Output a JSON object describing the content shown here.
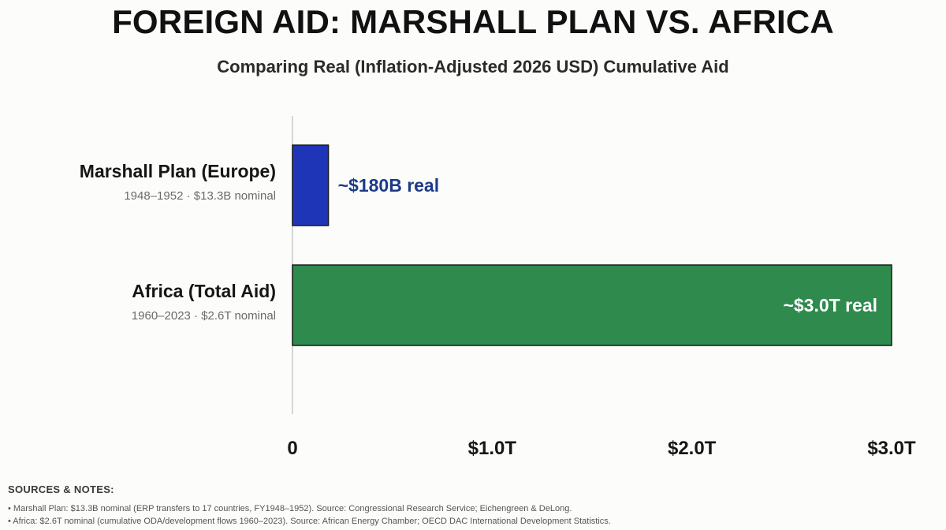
{
  "header": {
    "title": "FOREIGN AID: MARSHALL PLAN VS. AFRICA",
    "subtitle": "Comparing Real (Inflation-Adjusted 2026 USD) Cumulative Aid"
  },
  "chart_data": {
    "type": "bar",
    "orientation": "horizontal",
    "title": "FOREIGN AID: MARSHALL PLAN VS. AFRICA",
    "subtitle": "Comparing Real (Inflation-Adjusted 2026 USD) Cumulative Aid",
    "xlim": [
      0,
      3.0
    ],
    "x_unit": "trillion USD",
    "x_ticks": [
      {
        "value": 0,
        "label": "0"
      },
      {
        "value": 1.0,
        "label": "$1.0T"
      },
      {
        "value": 2.0,
        "label": "$2.0T"
      },
      {
        "value": 3.0,
        "label": "$3.0T"
      }
    ],
    "grid": false,
    "legend": "none",
    "bars": [
      {
        "label": "Marshall Plan (Europe)",
        "sublabel": "1948–1952 · $13.3B nominal",
        "value": 0.18,
        "value_label": "~$180B real",
        "value_label_position": "outside",
        "color": "#1f35b8",
        "label_color": "#1c3a8a"
      },
      {
        "label": "Africa (Total Aid)",
        "sublabel": "1960–2023 · $2.6T nominal",
        "value": 3.0,
        "value_label": "~$3.0T real",
        "value_label_position": "inside",
        "color": "#2e8a4d",
        "label_color": "#ffffff"
      }
    ]
  },
  "sources": {
    "heading": "SOURCES & NOTES:",
    "notes": [
      "• Marshall Plan: $13.3B nominal (ERP transfers to 17 countries, FY1948–1952). Source: Congressional Research Service; Eichengreen & DeLong.",
      "• Africa: $2.6T nominal (cumulative ODA/development flows 1960–2023). Source: African Energy Chamber; OECD DAC International Development Statistics."
    ]
  }
}
